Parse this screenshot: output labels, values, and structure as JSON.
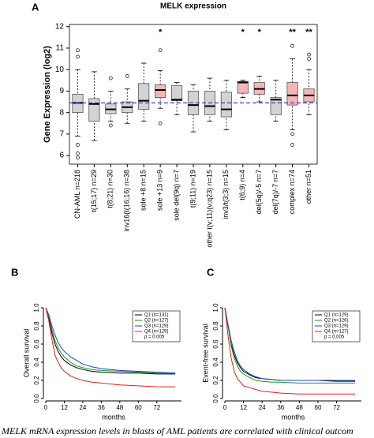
{
  "caption": "MELK mRNA expression levels in blasts of AML patients are correlated with clinical outcom",
  "chart_data": [
    {
      "type": "box",
      "panel": "A",
      "title": "MELK expression",
      "y_label": "Gene Expression (log2)",
      "ylim": [
        5.6,
        12.1
      ],
      "yticks": [
        6,
        7,
        8,
        9,
        10,
        11,
        12
      ],
      "ref_line": 8.45,
      "ref_color": "#3a3ad0",
      "categories": [
        "CN-AML  n=218",
        "t(15;17)  n=29",
        "t(8;21)  n=30",
        "inv16(t(16;16)  n=38",
        "sole +8  n=15",
        "sole +13  n=9",
        "sole del(9q)  n=7",
        "t(9;11)  n=19",
        "other t(v;11)(v;q23)  n=15",
        "inv3/t(3;3)  n=15",
        "t(6;9)  n=4",
        "del(5q)/-5  n=7",
        "del(7q)/-7  n=7",
        "complex  n=74",
        "other  n=51"
      ],
      "significance": [
        null,
        null,
        null,
        null,
        null,
        "*",
        null,
        null,
        null,
        null,
        "*",
        "*",
        null,
        "**",
        "**"
      ],
      "boxes": [
        {
          "q1": 8.0,
          "median": 8.45,
          "q3": 8.85,
          "whisker_low": 6.9,
          "whisker_high": 10.0,
          "outliers": [
            6.5,
            6.1,
            5.9,
            10.6,
            10.9
          ],
          "color": "#d3d3d3"
        },
        {
          "q1": 7.6,
          "median": 8.4,
          "q3": 8.65,
          "whisker_low": 6.7,
          "whisker_high": 9.9,
          "outliers": [],
          "color": "#d3d3d3"
        },
        {
          "q1": 7.95,
          "median": 8.15,
          "q3": 8.4,
          "whisker_low": 7.6,
          "whisker_high": 9.0,
          "outliers": [
            7.4,
            9.6
          ],
          "color": "#d3d3d3"
        },
        {
          "q1": 8.0,
          "median": 8.25,
          "q3": 8.5,
          "whisker_low": 7.5,
          "whisker_high": 9.1,
          "outliers": [
            9.7
          ],
          "color": "#d3d3d3"
        },
        {
          "q1": 8.15,
          "median": 8.55,
          "q3": 9.35,
          "whisker_low": 7.6,
          "whisker_high": 10.3,
          "outliers": [],
          "color": "#d3d3d3"
        },
        {
          "q1": 8.7,
          "median": 9.05,
          "q3": 9.3,
          "whisker_low": 8.2,
          "whisker_high": 9.95,
          "outliers": [
            7.5,
            10.9
          ],
          "color": "#f4b6b6"
        },
        {
          "q1": 8.55,
          "median": 8.6,
          "q3": 9.25,
          "whisker_low": 7.9,
          "whisker_high": 9.4,
          "outliers": [],
          "color": "#d3d3d3"
        },
        {
          "q1": 7.9,
          "median": 8.35,
          "q3": 9.0,
          "whisker_low": 7.1,
          "whisker_high": 9.3,
          "outliers": [],
          "color": "#d3d3d3"
        },
        {
          "q1": 7.9,
          "median": 8.3,
          "q3": 9.0,
          "whisker_low": 7.6,
          "whisker_high": 9.6,
          "outliers": [],
          "color": "#d3d3d3"
        },
        {
          "q1": 7.8,
          "median": 8.15,
          "q3": 8.95,
          "whisker_low": 7.2,
          "whisker_high": 9.5,
          "outliers": [],
          "color": "#d3d3d3"
        },
        {
          "q1": 8.9,
          "median": 9.4,
          "q3": 9.45,
          "whisker_low": 8.7,
          "whisker_high": 9.5,
          "outliers": [],
          "color": "#f4b6b6"
        },
        {
          "q1": 8.85,
          "median": 9.1,
          "q3": 9.4,
          "whisker_low": 8.5,
          "whisker_high": 9.7,
          "outliers": [],
          "color": "#f4b6b6"
        },
        {
          "q1": 7.9,
          "median": 8.6,
          "q3": 8.7,
          "whisker_low": 7.6,
          "whisker_high": 9.5,
          "outliers": [],
          "color": "#d3d3d3"
        },
        {
          "q1": 8.35,
          "median": 8.8,
          "q3": 9.4,
          "whisker_low": 7.2,
          "whisker_high": 10.5,
          "outliers": [
            11.1,
            7.0,
            6.5
          ],
          "color": "#f4b6b6"
        },
        {
          "q1": 8.5,
          "median": 8.8,
          "q3": 9.1,
          "whisker_low": 7.9,
          "whisker_high": 10.0,
          "outliers": [
            10.5,
            10.7
          ],
          "color": "#f4b6b6"
        }
      ]
    },
    {
      "type": "line",
      "panel": "B",
      "y_label": "Overall survival",
      "x_label": "months",
      "xlim": [
        0,
        88
      ],
      "xticks": [
        0,
        12,
        24,
        36,
        48,
        60,
        72
      ],
      "ylim": [
        0,
        1
      ],
      "yticks": [
        {
          "value": 0,
          "label": "0.0"
        },
        0.2,
        0.4,
        0.6,
        0.8,
        {
          "value": 1,
          "label": "1.0"
        }
      ],
      "legend_note": "p = 0.005",
      "x": [
        0,
        2,
        4,
        6,
        8,
        10,
        12,
        16,
        20,
        24,
        30,
        36,
        48,
        60,
        72,
        84
      ],
      "series": [
        {
          "name": "Q1 (n=131)",
          "color": "#000000",
          "values": [
            1,
            0.88,
            0.72,
            0.6,
            0.52,
            0.46,
            0.42,
            0.37,
            0.34,
            0.32,
            0.3,
            0.29,
            0.28,
            0.28,
            0.27,
            0.27
          ]
        },
        {
          "name": "Q2 (n=127)",
          "color": "#1a9a1a",
          "values": [
            1,
            0.9,
            0.76,
            0.64,
            0.56,
            0.5,
            0.46,
            0.4,
            0.36,
            0.34,
            0.32,
            0.31,
            0.3,
            0.29,
            0.28,
            0.28
          ]
        },
        {
          "name": "Q3 (n=129)",
          "color": "#1f3fd0",
          "values": [
            1,
            0.92,
            0.8,
            0.7,
            0.62,
            0.56,
            0.52,
            0.46,
            0.42,
            0.38,
            0.35,
            0.33,
            0.31,
            0.3,
            0.29,
            0.28
          ]
        },
        {
          "name": "Q4 (n=129)",
          "color": "#e02020",
          "values": [
            1,
            0.85,
            0.65,
            0.48,
            0.4,
            0.34,
            0.3,
            0.25,
            0.22,
            0.2,
            0.18,
            0.17,
            0.15,
            0.14,
            0.13,
            0.13
          ]
        }
      ]
    },
    {
      "type": "line",
      "panel": "C",
      "y_label": "Event-free survival",
      "x_label": "months",
      "xlim": [
        0,
        88
      ],
      "xticks": [
        0,
        12,
        24,
        36,
        48,
        60,
        72
      ],
      "ylim": [
        0,
        1
      ],
      "yticks": [
        {
          "value": 0,
          "label": "0.0"
        },
        0.2,
        0.4,
        0.6,
        0.8,
        {
          "value": 1,
          "label": "1.0"
        }
      ],
      "legend_note": "p = 0.005",
      "x": [
        0,
        2,
        4,
        6,
        8,
        10,
        12,
        16,
        20,
        24,
        30,
        36,
        48,
        60,
        72,
        84
      ],
      "series": [
        {
          "name": "Q1 (n=129)",
          "color": "#000000",
          "values": [
            1,
            0.8,
            0.6,
            0.48,
            0.4,
            0.34,
            0.3,
            0.26,
            0.23,
            0.22,
            0.21,
            0.2,
            0.2,
            0.2,
            0.19,
            0.19
          ]
        },
        {
          "name": "Q2 (n=126)",
          "color": "#1a9a1a",
          "values": [
            1,
            0.8,
            0.58,
            0.45,
            0.36,
            0.3,
            0.27,
            0.23,
            0.2,
            0.19,
            0.18,
            0.18,
            0.17,
            0.17,
            0.17,
            0.17
          ]
        },
        {
          "name": "Q3 (n=129)",
          "color": "#1f3fd0",
          "values": [
            1,
            0.82,
            0.64,
            0.52,
            0.42,
            0.36,
            0.32,
            0.27,
            0.24,
            0.22,
            0.21,
            0.2,
            0.2,
            0.2,
            0.2,
            0.2
          ]
        },
        {
          "name": "Q4 (n=127)",
          "color": "#e02020",
          "values": [
            1,
            0.7,
            0.45,
            0.3,
            0.22,
            0.18,
            0.14,
            0.12,
            0.1,
            0.08,
            0.07,
            0.06,
            0.05,
            0.05,
            0.05,
            0.05
          ]
        }
      ]
    }
  ]
}
